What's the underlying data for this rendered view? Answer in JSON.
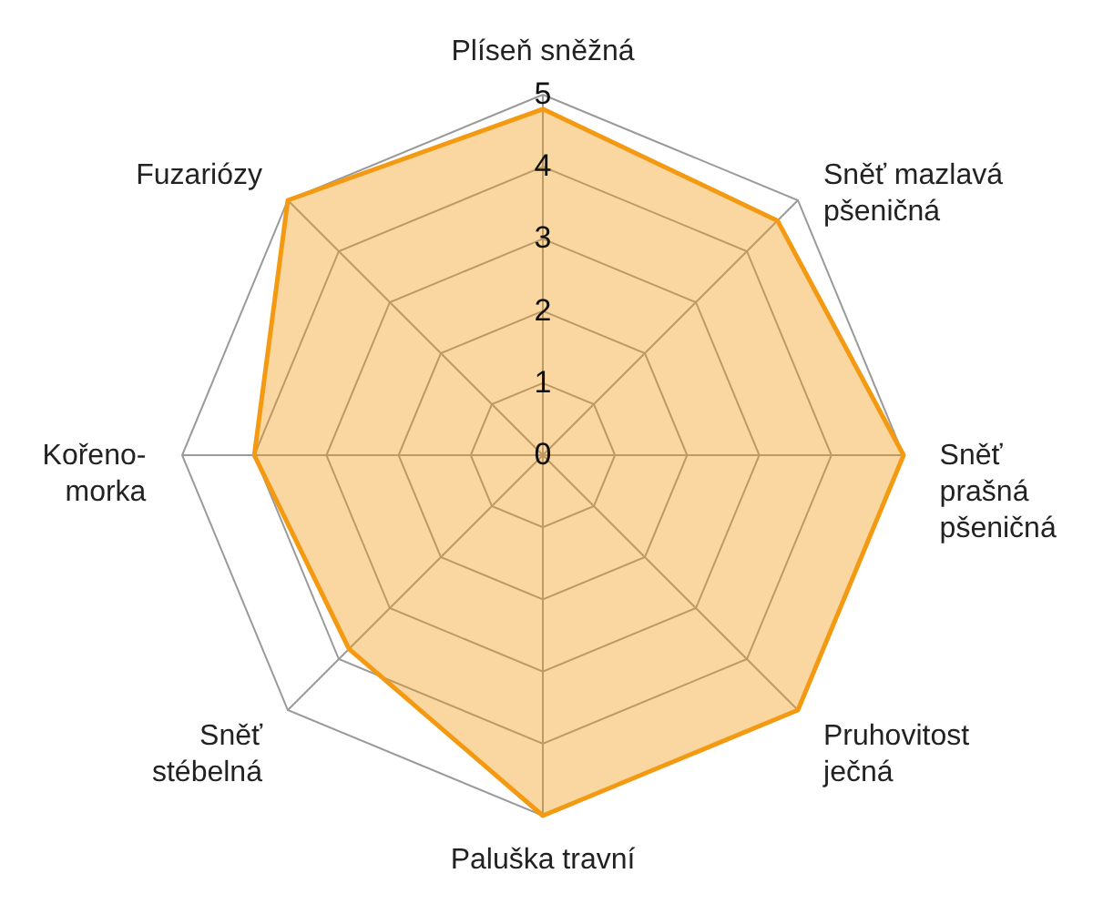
{
  "chart_data": {
    "type": "radar",
    "categories": [
      "Plíseň sněžná",
      "Sněť mazlavá\npšeničná",
      "Sněť\nprašná\npšeničná",
      "Pruhovitost\nječná",
      "Paluška travní",
      "Sněť\nstébelná",
      "Kořeno-\nmorka",
      "Fuzariózy"
    ],
    "series": [
      {
        "color": "#f39a12",
        "values": [
          4.8,
          4.6,
          5,
          5,
          5,
          3.8,
          4,
          5
        ]
      }
    ],
    "ylim": [
      0,
      5
    ],
    "yticks": [
      0,
      1,
      2,
      3,
      4,
      5
    ],
    "grid": true
  }
}
